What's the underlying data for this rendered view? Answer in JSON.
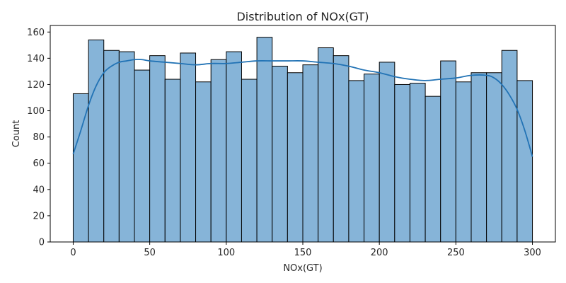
{
  "chart_data": {
    "type": "bar",
    "title": "Distribution of NOx(GT)",
    "xlabel": "NOx(GT)",
    "ylabel": "Count",
    "xlim": [
      -15,
      315
    ],
    "ylim": [
      0,
      165
    ],
    "xticks": [
      0,
      50,
      100,
      150,
      200,
      250,
      300
    ],
    "yticks": [
      0,
      20,
      40,
      60,
      80,
      100,
      120,
      140,
      160
    ],
    "bin_edges": [
      0,
      10,
      20,
      30,
      40,
      50,
      60,
      70,
      80,
      90,
      100,
      110,
      120,
      130,
      140,
      150,
      160,
      170,
      180,
      190,
      200,
      210,
      220,
      230,
      240,
      250,
      260,
      270,
      280,
      290,
      300
    ],
    "counts": [
      113,
      154,
      146,
      145,
      131,
      142,
      124,
      144,
      122,
      139,
      145,
      124,
      156,
      134,
      129,
      135,
      148,
      142,
      123,
      128,
      137,
      120,
      121,
      111,
      138,
      122,
      129,
      129,
      146,
      123
    ],
    "kde": {
      "x": [
        0,
        5,
        10,
        15,
        20,
        25,
        30,
        35,
        40,
        45,
        50,
        60,
        70,
        80,
        90,
        100,
        110,
        120,
        130,
        140,
        150,
        160,
        170,
        180,
        190,
        200,
        210,
        220,
        230,
        240,
        250,
        260,
        270,
        275,
        280,
        285,
        290,
        295,
        300
      ],
      "y": [
        67,
        85,
        104,
        119,
        129,
        134,
        137,
        138,
        139,
        139,
        138,
        137,
        136,
        135,
        136,
        136,
        137,
        138,
        138,
        138,
        138,
        137,
        136,
        134,
        131,
        129,
        126,
        124,
        123,
        124,
        125,
        127,
        127,
        125,
        120,
        112,
        101,
        85,
        65
      ]
    },
    "colors": {
      "bar_fill": "#86b4d8",
      "bar_edge": "#000000",
      "kde_line": "#2273b5"
    },
    "grid": false
  }
}
